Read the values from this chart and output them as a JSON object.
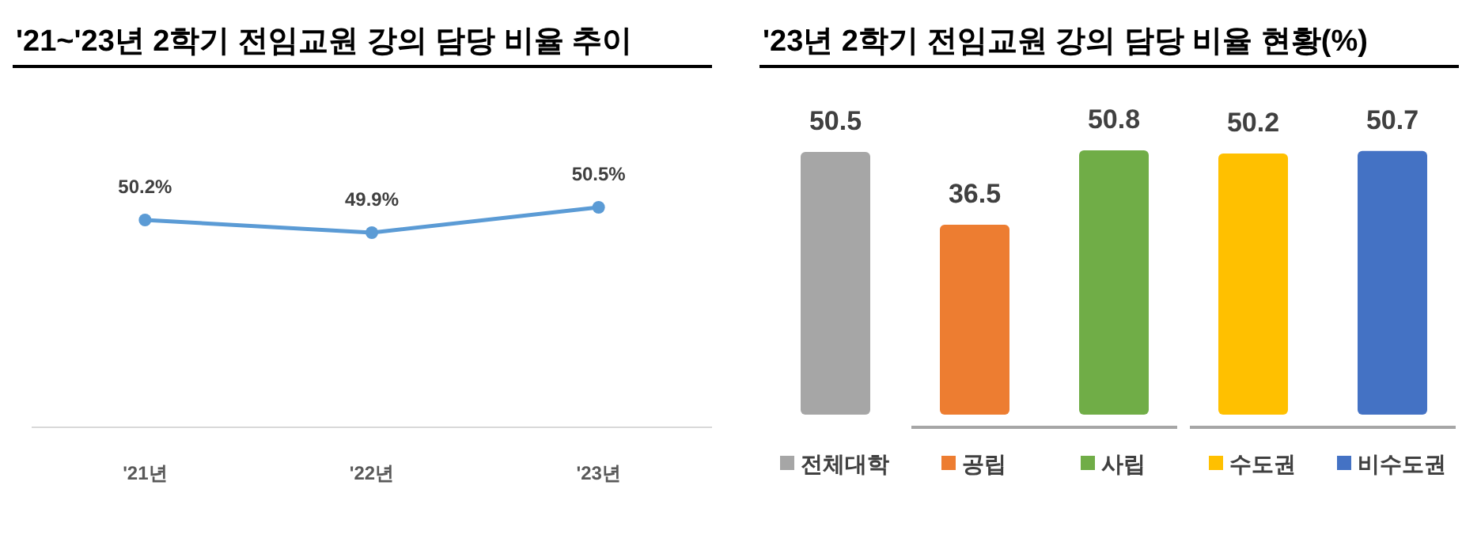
{
  "chart_data": [
    {
      "type": "line",
      "title": "'21~'23년 2학기 전임교원 강의 담당 비율 추이",
      "categories": [
        "'21년",
        "'22년",
        "'23년"
      ],
      "data_labels": true,
      "marker": "circle",
      "series": [
        {
          "color": "#5b9bd5",
          "values": [
            50.2,
            49.9,
            50.5
          ],
          "value_labels": [
            "50.2%",
            "49.9%",
            "50.5%"
          ]
        }
      ]
    },
    {
      "type": "bar",
      "title": "'23년 2학기 전임교원 강의 담당 비율 현황(%)",
      "categories": [
        "전체대학",
        "공립",
        "사립",
        "수도권",
        "비수도권"
      ],
      "values": [
        50.5,
        36.5,
        50.8,
        50.2,
        50.7
      ],
      "colors": [
        "#a6a6a6",
        "#ed7d31",
        "#70ad47",
        "#ffc000",
        "#4472c4"
      ],
      "data_labels": true
    }
  ]
}
